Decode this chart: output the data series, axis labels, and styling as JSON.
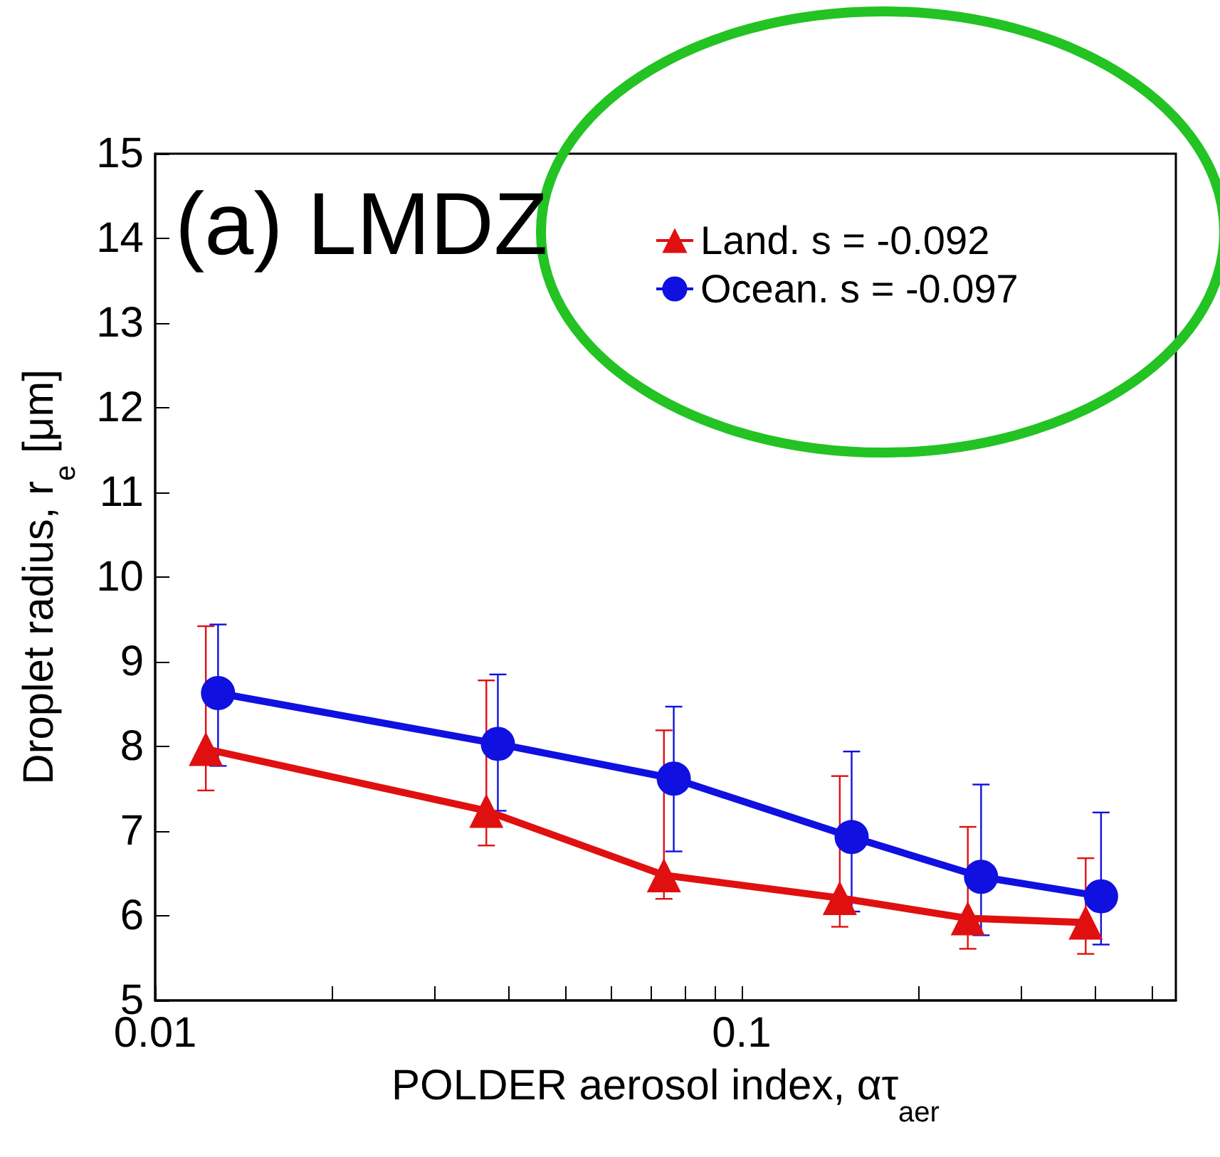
{
  "chart_data": {
    "type": "line",
    "title": "(a) LMDZ",
    "xlabel": "POLDER aerosol index, ατ$_{aer}$",
    "ylabel": "Droplet radius, r$_{e}$ [μm]",
    "log": "x",
    "xlim": [
      0.01,
      0.55
    ],
    "xticks": [
      0.01,
      {
        "value": 0.02,
        "label": null
      },
      {
        "value": 0.03,
        "label": null
      },
      {
        "value": 0.04,
        "label": null
      },
      {
        "value": 0.05,
        "label": null
      },
      {
        "value": 0.06,
        "label": null
      },
      {
        "value": 0.07,
        "label": null
      },
      {
        "value": 0.08,
        "label": null
      },
      {
        "value": 0.09,
        "label": null
      },
      0.1,
      {
        "value": 0.2,
        "label": null
      },
      {
        "value": 0.3,
        "label": null
      },
      {
        "value": 0.4,
        "label": null
      },
      {
        "value": 0.5,
        "label": null
      }
    ],
    "ylim": [
      5,
      15
    ],
    "yticks": [
      5,
      6,
      7,
      8,
      9,
      10,
      11,
      12,
      13,
      14,
      15
    ],
    "legend": "top right",
    "grid": false,
    "series": [
      {
        "name": "Land. s = -0.092",
        "color": "#e01010",
        "marker": "triangle",
        "x": [
          0.0122,
          0.0367,
          0.0737,
          0.147,
          0.243,
          0.386
        ],
        "values": [
          7.97,
          7.24,
          6.48,
          6.21,
          5.97,
          5.92
        ],
        "errors": [
          [
            7.48,
            9.42
          ],
          [
            6.83,
            8.78
          ],
          [
            6.2,
            8.19
          ],
          [
            5.87,
            7.65
          ],
          [
            5.61,
            7.05
          ],
          [
            5.55,
            6.68
          ]
        ]
      },
      {
        "name": "Ocean. s = -0.097",
        "color": "#1010e0",
        "marker": "circle",
        "x": [
          0.0128,
          0.0384,
          0.0766,
          0.154,
          0.256,
          0.41
        ],
        "values": [
          8.63,
          8.03,
          7.62,
          6.93,
          6.46,
          6.23
        ],
        "errors": [
          [
            7.77,
            9.44
          ],
          [
            7.24,
            8.85
          ],
          [
            6.76,
            8.47
          ],
          [
            6.05,
            7.94
          ],
          [
            5.77,
            7.55
          ],
          [
            5.66,
            7.22
          ]
        ]
      }
    ]
  }
}
